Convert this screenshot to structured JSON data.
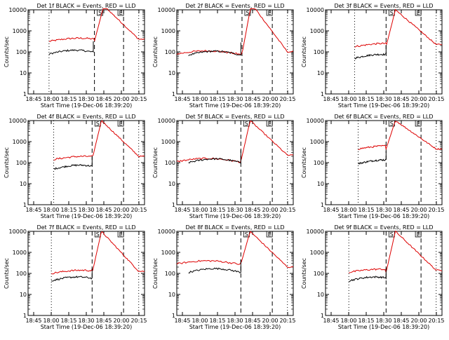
{
  "colors": {
    "events": "#000000",
    "lld": "#dd0000",
    "axes": "#000000",
    "background": "#ffffff"
  },
  "chart_data": [
    {
      "type": "line",
      "title": "Det 1f BLACK = Events, RED = LLD",
      "xlabel": "Start Time (19-Dec-06 18:39:20)",
      "ylabel": "Counts/sec",
      "y_scale": "log",
      "ylim": [
        1,
        10000
      ],
      "y_tick_labels": [
        "1",
        "10",
        "100",
        "1000",
        "10000"
      ],
      "x_tick_labels": [
        "18:45",
        "18:00",
        "18:15",
        "18:30",
        "18:45",
        "20:00",
        "20:15"
      ],
      "markers": [
        "S",
        "E"
      ],
      "series": [
        {
          "values": [
            null,
            null,
            null,
            null,
            null,
            null,
            null,
            null,
            null,
            null,
            null,
            null,
            null,
            null,
            null,
            null,
            null,
            null,
            null,
            null,
            null,
            null,
            null,
            null,
            null,
            null,
            null,
            null,
            null,
            null,
            null,
            null,
            null,
            null,
            null,
            null,
            null,
            null,
            null,
            null,
            null,
            null,
            null,
            null,
            null,
            null,
            null,
            null,
            null,
            null
          ]
        },
        {
          "values": [
            null,
            null,
            null,
            null,
            null,
            null,
            null,
            null,
            null,
            null,
            null,
            null,
            null,
            null,
            null,
            null,
            null,
            null,
            null,
            null,
            null,
            null,
            null,
            null,
            null,
            null,
            null,
            null,
            null,
            null,
            null,
            null,
            null,
            null,
            null,
            null,
            null,
            null,
            null,
            null,
            null,
            null,
            null,
            null,
            null,
            null,
            null,
            null,
            null,
            null
          ]
        }
      ]
    },
    {
      "type": "line",
      "title": "Det 2f BLACK = Events, RED = LLD",
      "xlabel": "Start Time (19-Dec-06 18:39:20)",
      "ylabel": "Counts/sec",
      "y_scale": "log",
      "ylim": [
        1,
        10000
      ],
      "y_tick_labels": [
        "1",
        "10",
        "100",
        "1000",
        "10000"
      ],
      "x_tick_labels": [
        "18:45",
        "18:00",
        "18:15",
        "18:30",
        "18:45",
        "20:00",
        "20:15"
      ],
      "markers": [
        "S",
        "E"
      ],
      "series": [
        {
          "values": []
        },
        {
          "values": []
        }
      ]
    },
    {
      "type": "line",
      "title": "Det 3f BLACK = Events, RED = LLD",
      "xlabel": "Start Time (19-Dec-06 18:39:20)",
      "ylabel": "Counts/sec",
      "y_scale": "log",
      "ylim": [
        1,
        10000
      ],
      "y_tick_labels": [
        "1",
        "10",
        "100",
        "1000",
        "10000"
      ],
      "x_tick_labels": [
        "18:45",
        "18:00",
        "18:15",
        "18:30",
        "18:45",
        "20:00",
        "20:15"
      ],
      "markers": [
        "S",
        "E"
      ],
      "series": [
        {
          "values": []
        },
        {
          "values": []
        }
      ]
    },
    {
      "type": "line",
      "title": "Det 4f BLACK = Events, RED = LLD",
      "xlabel": "Start Time (19-Dec-06 18:39:20)",
      "ylabel": "Counts/sec",
      "y_scale": "log",
      "ylim": [
        1,
        10000
      ],
      "y_tick_labels": [
        "1",
        "10",
        "100",
        "1000",
        "10000"
      ],
      "x_tick_labels": [
        "18:45",
        "18:00",
        "18:15",
        "18:30",
        "18:45",
        "20:00",
        "20:15"
      ],
      "markers": [
        "S",
        "E"
      ],
      "series": [
        {
          "values": []
        },
        {
          "values": []
        }
      ]
    },
    {
      "type": "line",
      "title": "Det 5f BLACK = Events, RED = LLD",
      "xlabel": "Start Time (19-Dec-06 18:39:20)",
      "ylabel": "Counts/sec",
      "y_scale": "log",
      "ylim": [
        1,
        10000
      ],
      "y_tick_labels": [
        "1",
        "10",
        "100",
        "1000",
        "10000"
      ],
      "x_tick_labels": [
        "18:45",
        "18:00",
        "18:15",
        "18:30",
        "18:45",
        "20:00",
        "20:15"
      ],
      "markers": [
        "S",
        "E"
      ],
      "series": [
        {
          "values": []
        },
        {
          "values": []
        }
      ]
    },
    {
      "type": "line",
      "title": "Det 6f BLACK = Events, RED = LLD",
      "xlabel": "Start Time (19-Dec-06 18:39:20)",
      "ylabel": "Counts/sec",
      "y_scale": "log",
      "ylim": [
        1,
        10000
      ],
      "y_tick_labels": [
        "1",
        "10",
        "100",
        "1000",
        "10000"
      ],
      "x_tick_labels": [
        "18:45",
        "18:00",
        "18:15",
        "18:30",
        "18:45",
        "20:00",
        "20:15"
      ],
      "markers": [
        "S",
        "E"
      ],
      "series": [
        {
          "values": []
        },
        {
          "values": []
        }
      ]
    },
    {
      "type": "line",
      "title": "Det 7f BLACK = Events, RED = LLD",
      "xlabel": "Start Time (19-Dec-06 18:39:20)",
      "ylabel": "Counts/sec",
      "y_scale": "log",
      "ylim": [
        1,
        10000
      ],
      "y_tick_labels": [
        "1",
        "10",
        "100",
        "1000",
        "10000"
      ],
      "x_tick_labels": [
        "18:45",
        "18:00",
        "18:15",
        "18:30",
        "18:45",
        "20:00",
        "20:15"
      ],
      "markers": [
        "S",
        "E"
      ],
      "series": [
        {
          "values": []
        },
        {
          "values": []
        }
      ]
    },
    {
      "type": "line",
      "title": "Det 8f BLACK = Events, RED = LLD",
      "xlabel": "Start Time (19-Dec-06 18:39:20)",
      "ylabel": "Counts/sec",
      "y_scale": "log",
      "ylim": [
        1,
        10000
      ],
      "y_tick_labels": [
        "1",
        "10",
        "100",
        "1000",
        "10000"
      ],
      "x_tick_labels": [
        "18:45",
        "18:00",
        "18:15",
        "18:30",
        "18:45",
        "20:00",
        "20:15"
      ],
      "markers": [
        "S",
        "E"
      ],
      "series": [
        {
          "values": []
        },
        {
          "values": []
        }
      ]
    },
    {
      "type": "line",
      "title": "Det 9f BLACK = Events, RED = LLD",
      "xlabel": "Start Time (19-Dec-06 18:39:20)",
      "ylabel": "Counts/sec",
      "y_scale": "log",
      "ylim": [
        1,
        10000
      ],
      "y_tick_labels": [
        "1",
        "10",
        "100",
        "1000",
        "10000"
      ],
      "x_tick_labels": [
        "18:45",
        "18:00",
        "18:15",
        "18:30",
        "18:45",
        "20:00",
        "20:15"
      ],
      "markers": [
        "S",
        "E"
      ],
      "series": [
        {
          "values": []
        },
        {
          "values": []
        }
      ]
    }
  ]
}
